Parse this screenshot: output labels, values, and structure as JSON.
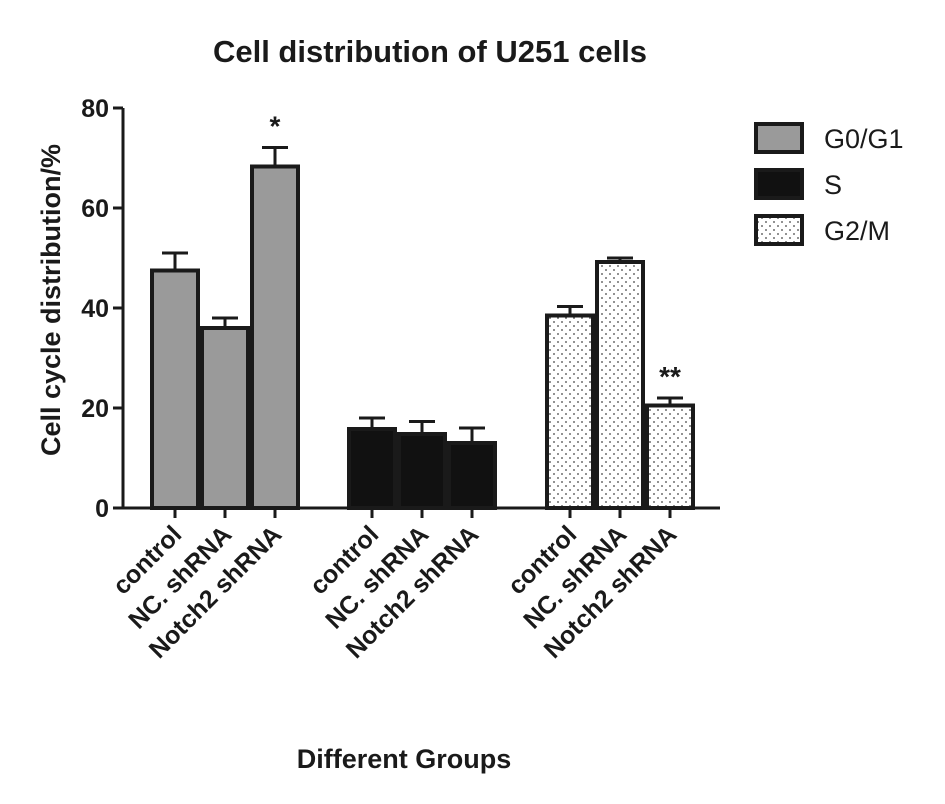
{
  "chart_data": {
    "type": "bar",
    "title": "Cell distribution of U251 cells",
    "xlabel": "Different Groups",
    "ylabel": "Cell cycle distribution/%",
    "ylim": [
      0,
      80
    ],
    "yticks": [
      "0",
      "20",
      "40",
      "60",
      "80"
    ],
    "grid": false,
    "legend_position": "top-right",
    "categories": [
      "control",
      "NC. shRNA",
      "Notch2 shRNA"
    ],
    "series": [
      {
        "name": "G0/G1",
        "fill": "#9a9a9a",
        "pattern": "solid",
        "values": [
          47.5,
          36,
          68.3
        ],
        "errors": [
          3.5,
          2,
          3.8
        ],
        "annotations": [
          "",
          "",
          "*"
        ]
      },
      {
        "name": "S",
        "fill": "#111111",
        "pattern": "solid",
        "values": [
          15.8,
          14.8,
          13
        ],
        "errors": [
          2.2,
          2.5,
          3
        ],
        "annotations": [
          "",
          "",
          ""
        ]
      },
      {
        "name": "G2/M",
        "fill": "#ffffff",
        "pattern": "dots",
        "values": [
          38.5,
          49.2,
          20.5
        ],
        "errors": [
          1.8,
          0.8,
          1.5
        ],
        "annotations": [
          "",
          "",
          "**"
        ]
      }
    ]
  }
}
